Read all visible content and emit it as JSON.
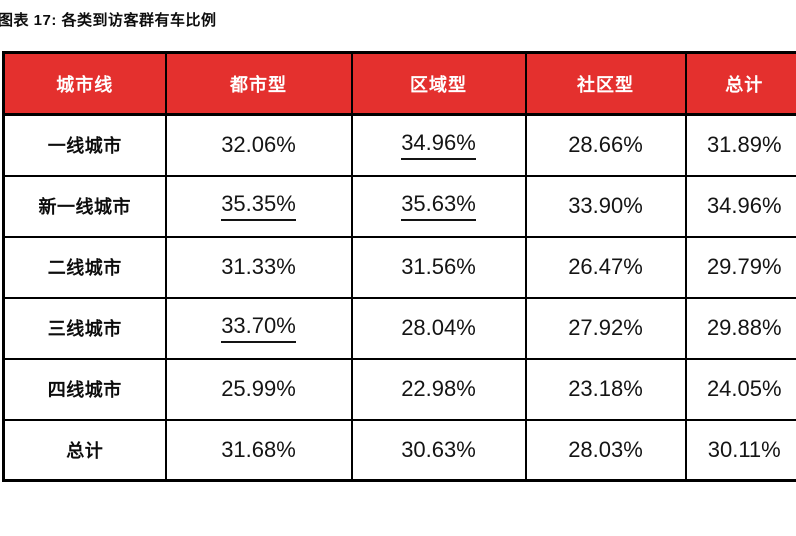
{
  "figure": {
    "title": "图表 17: 各类到访客群有车比例"
  },
  "colors": {
    "header_background": "#e4302e",
    "header_text": "#ffffff",
    "grid_border": "#000000",
    "body_text": "#141414"
  },
  "chart_data": {
    "type": "table",
    "title": "图表 17: 各类到访客群有车比例",
    "columns": [
      "城市线",
      "都市型",
      "区域型",
      "社区型",
      "总计"
    ],
    "rows": [
      {
        "label": "一线城市",
        "values": [
          "32.06%",
          "34.96%",
          "28.66%",
          "31.89%"
        ],
        "underlined": [
          false,
          true,
          false,
          false
        ]
      },
      {
        "label": "新一线城市",
        "values": [
          "35.35%",
          "35.63%",
          "33.90%",
          "34.96%"
        ],
        "underlined": [
          true,
          true,
          false,
          false
        ]
      },
      {
        "label": "二线城市",
        "values": [
          "31.33%",
          "31.56%",
          "26.47%",
          "29.79%"
        ],
        "underlined": [
          false,
          false,
          false,
          false
        ]
      },
      {
        "label": "三线城市",
        "values": [
          "33.70%",
          "28.04%",
          "27.92%",
          "29.88%"
        ],
        "underlined": [
          true,
          false,
          false,
          false
        ]
      },
      {
        "label": "四线城市",
        "values": [
          "25.99%",
          "22.98%",
          "23.18%",
          "24.05%"
        ],
        "underlined": [
          false,
          false,
          false,
          false
        ]
      },
      {
        "label": "总计",
        "values": [
          "31.68%",
          "30.63%",
          "28.03%",
          "30.11%"
        ],
        "underlined": [
          false,
          false,
          false,
          false
        ]
      }
    ]
  }
}
